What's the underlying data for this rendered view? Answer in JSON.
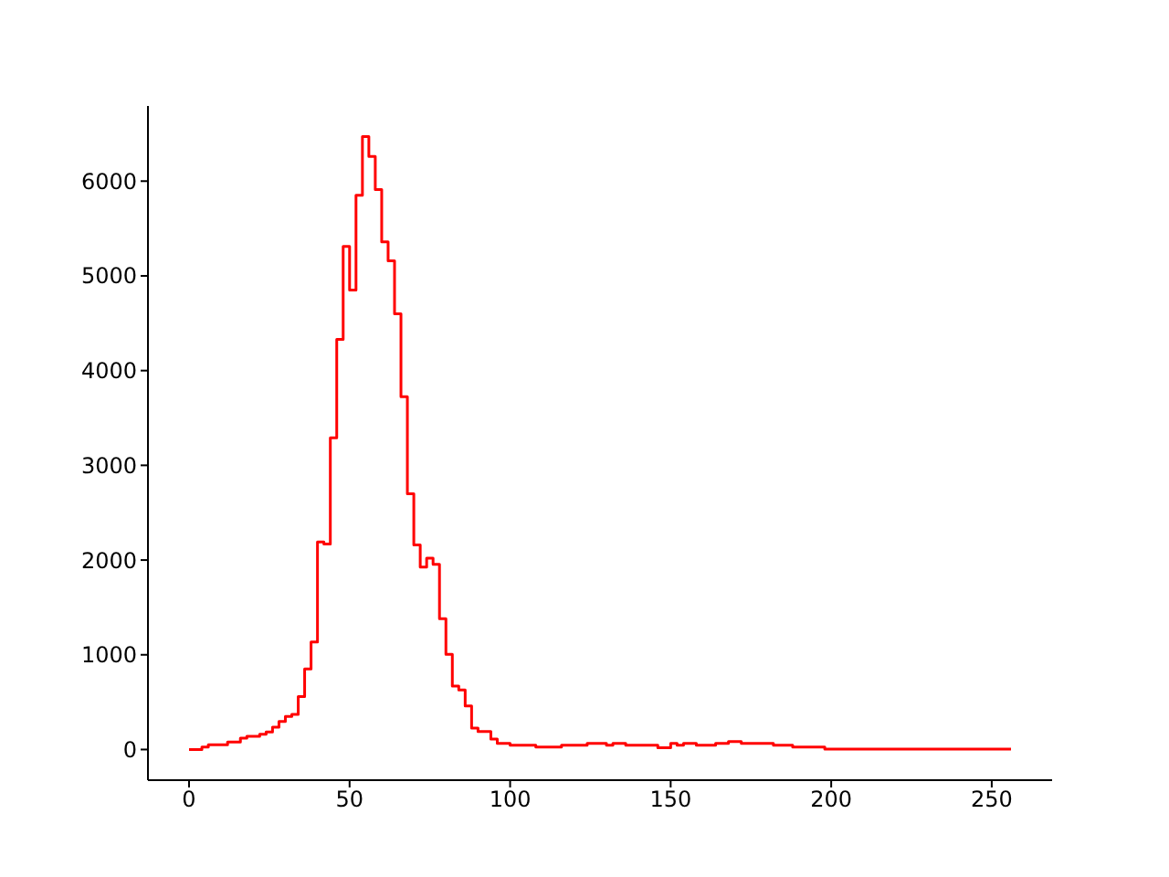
{
  "chart_data": {
    "type": "step",
    "x": [
      0,
      2,
      4,
      6,
      8,
      10,
      12,
      14,
      16,
      18,
      20,
      22,
      24,
      26,
      28,
      30,
      32,
      34,
      36,
      38,
      40,
      42,
      44,
      46,
      48,
      50,
      52,
      54,
      56,
      58,
      60,
      62,
      64,
      66,
      68,
      70,
      72,
      74,
      76,
      78,
      80,
      82,
      84,
      86,
      88,
      90,
      92,
      94,
      96,
      98,
      100,
      102,
      104,
      106,
      108,
      110,
      112,
      114,
      116,
      118,
      120,
      122,
      124,
      126,
      128,
      130,
      132,
      134,
      136,
      138,
      140,
      142,
      144,
      146,
      148,
      150,
      152,
      154,
      156,
      158,
      160,
      162,
      164,
      166,
      168,
      170,
      172,
      174,
      176,
      178,
      180,
      182,
      184,
      186,
      188,
      190,
      192,
      194,
      196,
      198,
      200,
      202,
      204,
      206,
      208,
      210,
      212,
      214,
      216,
      218,
      220,
      222,
      224,
      226,
      228,
      230,
      232,
      234,
      236,
      238,
      240,
      242,
      244,
      246,
      248,
      250,
      252,
      254,
      256
    ],
    "series": [
      {
        "color": "#ff0000",
        "values": [
          0,
          0,
          25,
          50,
          50,
          50,
          80,
          80,
          120,
          140,
          140,
          160,
          185,
          235,
          295,
          350,
          370,
          560,
          850,
          1135,
          2190,
          2170,
          3290,
          4330,
          5310,
          4850,
          5850,
          6470,
          6260,
          5910,
          5360,
          5160,
          4600,
          3725,
          2700,
          2160,
          1925,
          2020,
          1955,
          1380,
          1005,
          670,
          630,
          460,
          225,
          190,
          190,
          110,
          65,
          65,
          45,
          45,
          45,
          45,
          25,
          25,
          25,
          25,
          45,
          45,
          45,
          45,
          65,
          65,
          65,
          45,
          65,
          65,
          45,
          45,
          45,
          45,
          45,
          20,
          20,
          65,
          45,
          65,
          65,
          45,
          45,
          45,
          65,
          65,
          85,
          85,
          65,
          65,
          65,
          65,
          65,
          45,
          45,
          45,
          25,
          25,
          25,
          25,
          25,
          5,
          5,
          5,
          5,
          5,
          5,
          5,
          5,
          5,
          5,
          5,
          5,
          5,
          5,
          5,
          5,
          5,
          5,
          5,
          5,
          5,
          5,
          5,
          5,
          5,
          5,
          5,
          5,
          5,
          5
        ]
      }
    ],
    "xlim": [
      -12.8,
      268.8
    ],
    "xticks": [
      0,
      50,
      100,
      150,
      200,
      250
    ],
    "ylim": [
      -323.5,
      6793.5
    ],
    "yticks": [
      0,
      1000,
      2000,
      3000,
      4000,
      5000,
      6000
    ],
    "grid": false,
    "legend": false
  }
}
